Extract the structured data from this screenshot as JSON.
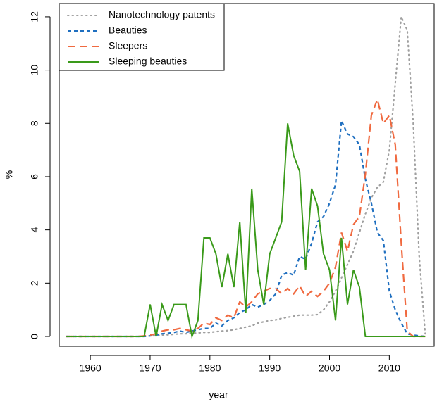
{
  "chart_data": {
    "type": "line",
    "xlabel": "year",
    "ylabel": "%",
    "x": [
      1956,
      1957,
      1958,
      1959,
      1960,
      1961,
      1962,
      1963,
      1964,
      1965,
      1966,
      1967,
      1968,
      1969,
      1970,
      1971,
      1972,
      1973,
      1974,
      1975,
      1976,
      1977,
      1978,
      1979,
      1980,
      1981,
      1982,
      1983,
      1984,
      1985,
      1986,
      1987,
      1988,
      1989,
      1990,
      1991,
      1992,
      1993,
      1994,
      1995,
      1996,
      1997,
      1998,
      1999,
      2000,
      2001,
      2002,
      2003,
      2004,
      2005,
      2006,
      2007,
      2008,
      2009,
      2010,
      2011,
      2012,
      2013,
      2014,
      2015,
      2016
    ],
    "xlim": [
      1954.8,
      2017.5
    ],
    "xticks": [
      1960,
      1970,
      1980,
      1990,
      2000,
      2010
    ],
    "ylim": [
      -0.37,
      12.5
    ],
    "yticks": [
      0,
      2,
      4,
      6,
      8,
      10,
      12
    ],
    "legend": "top-left",
    "series": [
      {
        "name": "Nanotechnology patents",
        "color": "#a0a0a0",
        "dash": "dotted",
        "values": [
          0,
          0,
          0,
          0,
          0,
          0,
          0,
          0,
          0,
          0,
          0,
          0,
          0,
          0,
          0.02,
          0.03,
          0.05,
          0.06,
          0.08,
          0.1,
          0.1,
          0.12,
          0.13,
          0.15,
          0.15,
          0.18,
          0.2,
          0.22,
          0.25,
          0.3,
          0.35,
          0.4,
          0.5,
          0.55,
          0.6,
          0.62,
          0.68,
          0.72,
          0.76,
          0.8,
          0.8,
          0.8,
          0.82,
          1.0,
          1.3,
          1.7,
          2.2,
          2.7,
          3.2,
          3.9,
          4.6,
          5.2,
          5.6,
          5.8,
          7.0,
          9.5,
          12.0,
          11.5,
          8.0,
          3.0,
          0.1
        ]
      },
      {
        "name": "Beauties",
        "color": "#1f6fc0",
        "dash": "dashed",
        "values": [
          0,
          0,
          0,
          0,
          0,
          0,
          0,
          0,
          0,
          0,
          0,
          0,
          0,
          0,
          0.02,
          0.05,
          0.1,
          0.12,
          0.15,
          0.2,
          0.15,
          0.2,
          0.25,
          0.3,
          0.3,
          0.5,
          0.4,
          0.6,
          0.7,
          0.9,
          1.0,
          1.2,
          1.1,
          1.2,
          1.35,
          1.6,
          2.3,
          2.4,
          2.3,
          3.0,
          2.9,
          3.5,
          4.3,
          4.5,
          5.0,
          5.7,
          8.1,
          7.6,
          7.5,
          7.2,
          5.9,
          5.0,
          3.9,
          3.6,
          1.7,
          1.0,
          0.5,
          0.1,
          0.05,
          0.02,
          0
        ]
      },
      {
        "name": "Sleepers",
        "color": "#f06a40",
        "dash": "longdash",
        "values": [
          0,
          0,
          0,
          0,
          0,
          0,
          0,
          0,
          0,
          0,
          0,
          0,
          0,
          0.02,
          0.05,
          0.1,
          0.2,
          0.25,
          0.25,
          0.3,
          0.25,
          0.2,
          0.3,
          0.5,
          0.45,
          0.7,
          0.6,
          0.8,
          0.7,
          1.3,
          1.1,
          1.3,
          1.6,
          1.7,
          1.8,
          1.8,
          1.6,
          1.8,
          1.6,
          1.9,
          1.5,
          1.7,
          1.5,
          1.7,
          2.0,
          2.6,
          3.9,
          3.2,
          4.2,
          4.5,
          6.1,
          8.3,
          8.9,
          8.0,
          8.3,
          7.2,
          3.5,
          0.2,
          0,
          0,
          0
        ]
      },
      {
        "name": "Sleeping beauties",
        "color": "#3a9a1a",
        "dash": "solid",
        "values": [
          0,
          0,
          0,
          0,
          0,
          0,
          0,
          0,
          0,
          0,
          0,
          0,
          0,
          0,
          1.2,
          0,
          1.2,
          0.6,
          1.2,
          1.2,
          1.2,
          0,
          0.6,
          3.7,
          3.7,
          3.1,
          1.85,
          3.1,
          1.85,
          4.3,
          0.9,
          5.55,
          2.5,
          1.2,
          3.1,
          3.7,
          4.3,
          8.0,
          6.8,
          6.2,
          2.5,
          5.55,
          4.9,
          3.1,
          2.5,
          0.6,
          3.7,
          1.2,
          2.5,
          1.85,
          0,
          0,
          0,
          0,
          0,
          0,
          0,
          0,
          0,
          0,
          0
        ]
      }
    ]
  }
}
